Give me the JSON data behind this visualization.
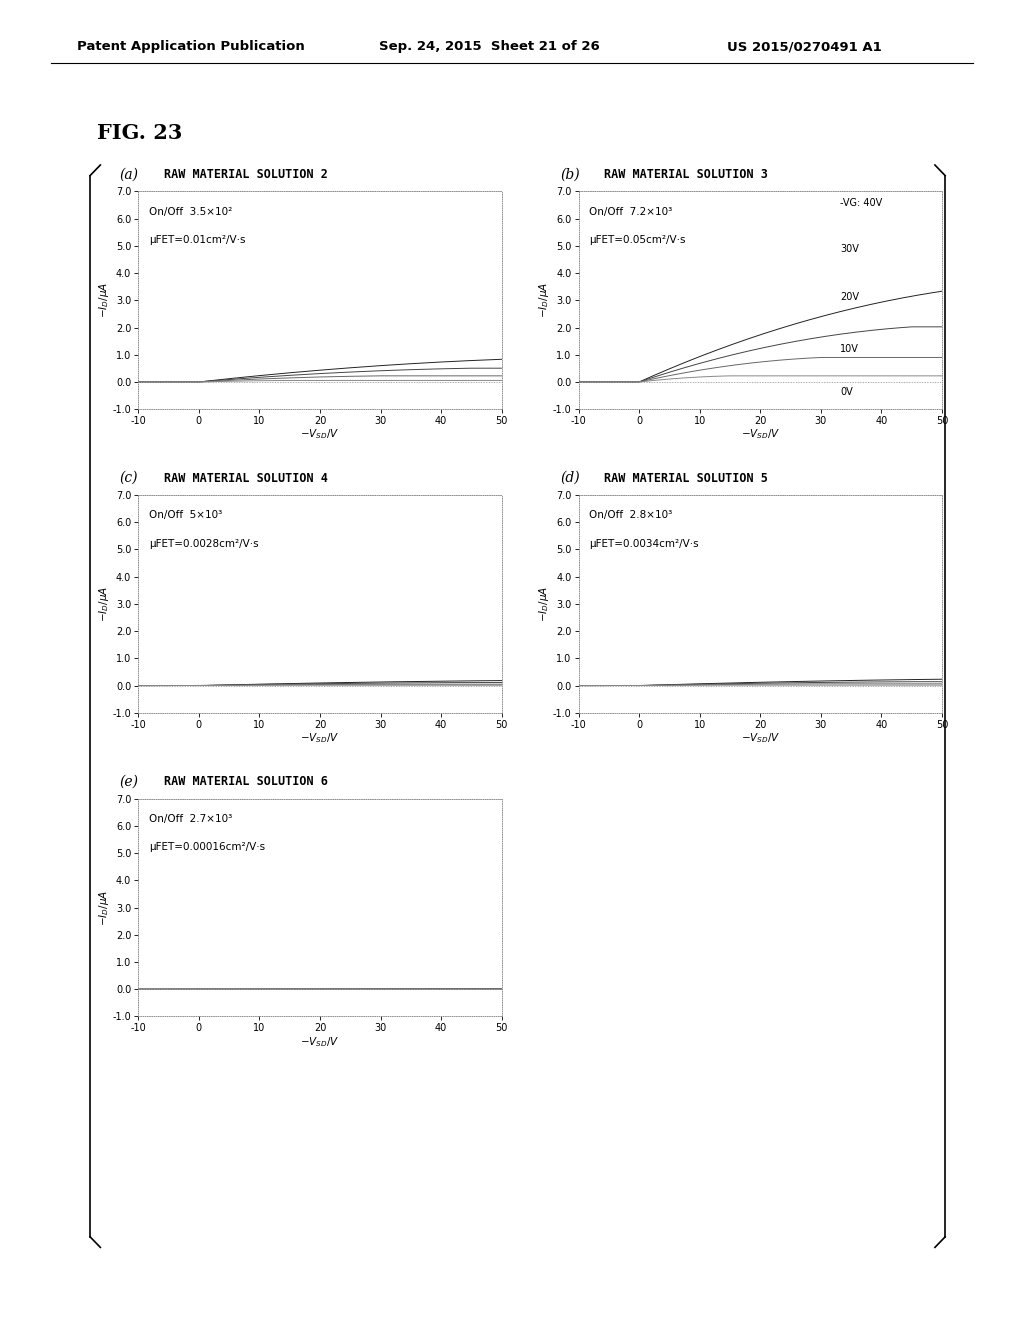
{
  "fig_label": "FIG. 23",
  "header_left": "Patent Application Publication",
  "header_center": "Sep. 24, 2015  Sheet 21 of 26",
  "header_right": "US 2015/0270491 A1",
  "background_color": "#ffffff",
  "subplots": [
    {
      "label": "(a)",
      "title": "RAW MATERIAL SOLUTION 2",
      "on_off": "On/Off  3.5×10²",
      "mu": "μFET=0.01cm²/V·s",
      "xlim": [
        -10,
        50
      ],
      "ylim": [
        -1.0,
        7.0
      ],
      "xticks": [
        -10,
        0,
        10,
        20,
        30,
        40,
        50
      ],
      "yticks": [
        -1.0,
        0.0,
        1.0,
        2.0,
        3.0,
        4.0,
        5.0,
        6.0,
        7.0
      ],
      "curves_Vg": [
        40,
        30,
        20,
        10,
        0
      ],
      "show_legend": false,
      "curve_scale": 0.025
    },
    {
      "label": "(b)",
      "title": "RAW MATERIAL SOLUTION 3",
      "on_off": "On/Off  7.2×10³",
      "mu": "μFET=0.05cm²/V·s",
      "xlim": [
        -10,
        50
      ],
      "ylim": [
        -1.0,
        7.0
      ],
      "xticks": [
        -10,
        0,
        10,
        20,
        30,
        40,
        50
      ],
      "yticks": [
        -1.0,
        0.0,
        1.0,
        2.0,
        3.0,
        4.0,
        5.0,
        6.0,
        7.0
      ],
      "curves_Vg": [
        40,
        30,
        20,
        10,
        0
      ],
      "show_legend": true,
      "curve_scale": 0.1
    },
    {
      "label": "(c)",
      "title": "RAW MATERIAL SOLUTION 4",
      "on_off": "On/Off  5×10³",
      "mu": "μFET=0.0028cm²/V·s",
      "xlim": [
        -10,
        50
      ],
      "ylim": [
        -1.0,
        7.0
      ],
      "xticks": [
        -10,
        0,
        10,
        20,
        30,
        40,
        50
      ],
      "yticks": [
        -1.0,
        0.0,
        1.0,
        2.0,
        3.0,
        4.0,
        5.0,
        6.0,
        7.0
      ],
      "curves_Vg": [
        40,
        30,
        20,
        10,
        0
      ],
      "show_legend": false,
      "curve_scale": 0.0055
    },
    {
      "label": "(d)",
      "title": "RAW MATERIAL SOLUTION 5",
      "on_off": "On/Off  2.8×10³",
      "mu": "μFET=0.0034cm²/V·s",
      "xlim": [
        -10,
        50
      ],
      "ylim": [
        -1.0,
        7.0
      ],
      "xticks": [
        -10,
        0,
        10,
        20,
        30,
        40,
        50
      ],
      "yticks": [
        -1.0,
        0.0,
        1.0,
        2.0,
        3.0,
        4.0,
        5.0,
        6.0,
        7.0
      ],
      "curves_Vg": [
        40,
        30,
        20,
        10,
        0
      ],
      "show_legend": false,
      "curve_scale": 0.007
    },
    {
      "label": "(e)",
      "title": "RAW MATERIAL SOLUTION 6",
      "on_off": "On/Off  2.7×10³",
      "mu": "μFET=0.00016cm²/V·s",
      "xlim": [
        -10,
        50
      ],
      "ylim": [
        -1.0,
        7.0
      ],
      "xticks": [
        -10,
        0,
        10,
        20,
        30,
        40,
        50
      ],
      "yticks": [
        -1.0,
        0.0,
        1.0,
        2.0,
        3.0,
        4.0,
        5.0,
        6.0,
        7.0
      ],
      "curves_Vg": [
        40,
        30,
        20,
        10,
        0
      ],
      "show_legend": false,
      "curve_scale": 0.00035
    }
  ],
  "vg_labels": [
    "-VG: 40V",
    "30V",
    "20V",
    "10V",
    "0V"
  ],
  "line_colors": [
    "#222222",
    "#444444",
    "#666666",
    "#888888",
    "#aaaaaa"
  ],
  "line_styles": [
    "-",
    "-",
    "-",
    "-",
    "-"
  ]
}
